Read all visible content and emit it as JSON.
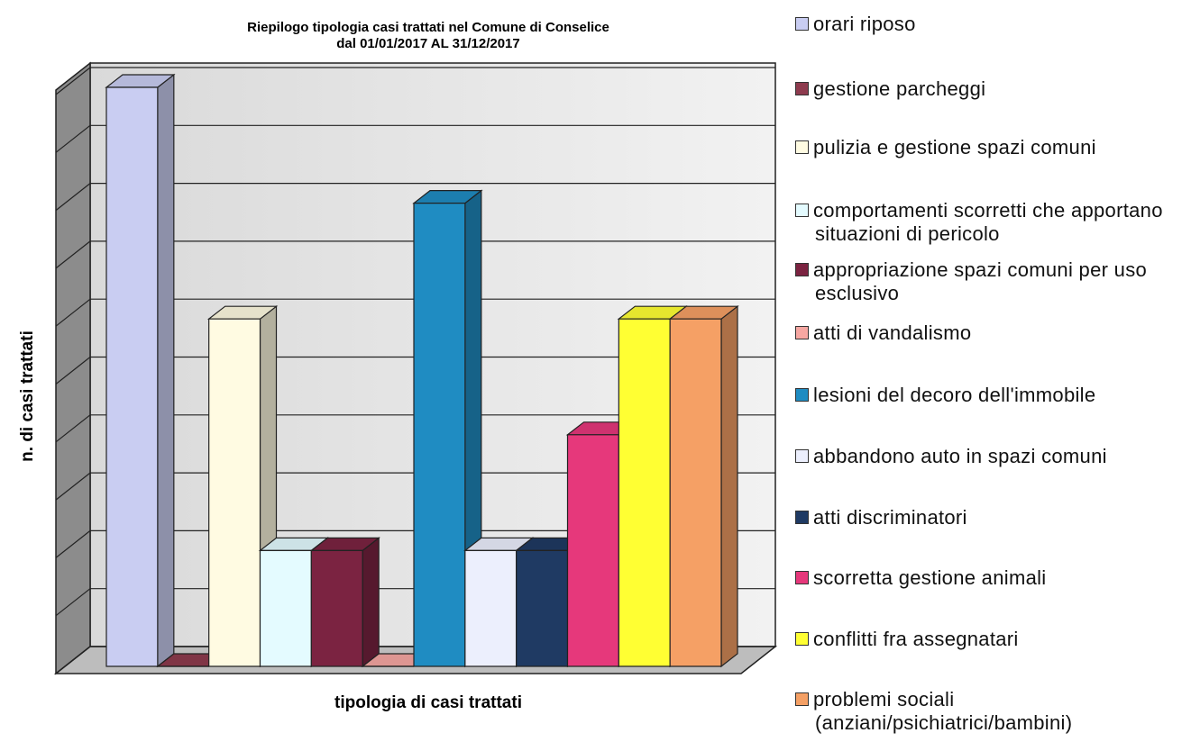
{
  "chart_data": {
    "type": "bar3d",
    "title": [
      "Riepilogo  tipologia  casi trattati nel Comune  di Conselice",
      "dal 01/01/2017  AL  31/12/2017"
    ],
    "xlabel": "tipologia di casi trattati",
    "ylabel": "n. di casi trattati",
    "categories": [
      "orari riposo",
      "gestione parcheggi",
      "pulizia e gestione spazi comuni",
      "comportamenti scorretti che apportano situazioni di pericolo",
      "appropriazione spazi comuni per uso esclusivo",
      "atti di vandalismo",
      "lesioni del decoro dell'immobile",
      "abbandono auto in spazi comuni",
      "atti discriminatori",
      "scorretta gestione animali",
      "conflitti fra assegnatari",
      "problemi sociali (anziani/psichiatrici/bambini)"
    ],
    "values": [
      5,
      0,
      3,
      1,
      1,
      0,
      4,
      1,
      1,
      2,
      3,
      3
    ],
    "colors": [
      "#c9cdf2",
      "#8e3b4e",
      "#fffbe2",
      "#e4fbff",
      "#7b2341",
      "#f6a7a2",
      "#1f8cc2",
      "#eceffd",
      "#1f3a63",
      "#e6387b",
      "#ffff33",
      "#f5a065"
    ],
    "ylim": [
      0,
      5
    ],
    "yticks": [
      0,
      0.5,
      1,
      1.5,
      2,
      2.5,
      3,
      3.5,
      4,
      4.5,
      5
    ],
    "grid": true,
    "legend": "right"
  }
}
